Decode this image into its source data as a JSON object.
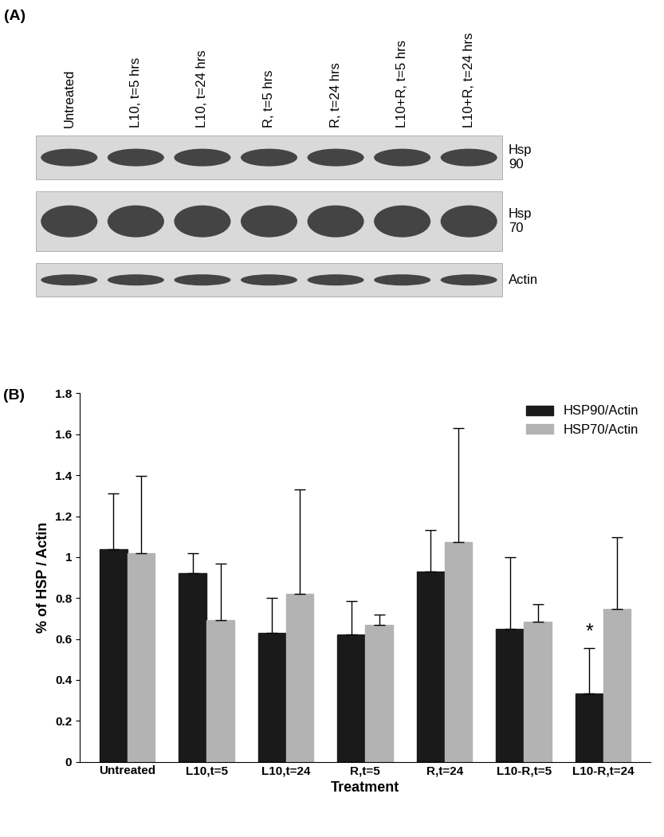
{
  "blot": {
    "panel_label": "(A)",
    "lanes": [
      "Untreated",
      "L10, t=5 hrs",
      "L10, t=24 hrs",
      "R, t=5 hrs",
      "R, t=24 hrs",
      "L10+R, t=5 hrs",
      "L10+R, t=24 hrs"
    ],
    "rows": [
      "Hsp 90",
      "Hsp 70",
      "Actin"
    ]
  },
  "chart_data": {
    "type": "bar",
    "panel_label": "(B)",
    "x_label": "Treatment",
    "y_label": "% of HSP / Actin",
    "categories": [
      "Untreated",
      "L10,t=5",
      "L10,t=24",
      "R,t=5",
      "R,t=24",
      "L10-R,t=5",
      "L10-R,t=24"
    ],
    "series": [
      {
        "name": "HSP90/Actin",
        "color": "#1a1a1a",
        "values": [
          1.04,
          0.92,
          0.63,
          0.62,
          0.93,
          0.65,
          0.335
        ],
        "errors": [
          0.27,
          0.1,
          0.17,
          0.165,
          0.2,
          0.35,
          0.22
        ]
      },
      {
        "name": "HSP70/Actin",
        "color": "#b3b3b3",
        "values": [
          1.02,
          0.69,
          0.82,
          0.67,
          1.075,
          0.685,
          0.745
        ],
        "errors": [
          0.375,
          0.28,
          0.51,
          0.05,
          0.555,
          0.085,
          0.35
        ]
      }
    ],
    "annotations": [
      {
        "text": "*",
        "category": "L10-R,t=24",
        "series": "HSP90/Actin"
      }
    ],
    "ylim": [
      0,
      1.8
    ],
    "yticks": [
      0,
      0.2,
      0.4,
      0.6,
      0.8,
      1,
      1.2,
      1.4,
      1.6,
      1.8
    ],
    "legend": "upper right",
    "grid": false
  }
}
